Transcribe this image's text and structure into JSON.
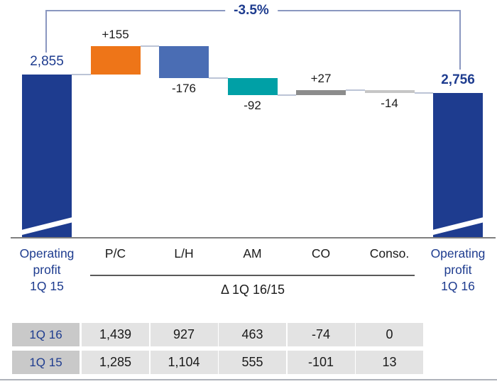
{
  "colors": {
    "dark_blue": "#1e3c8f",
    "orange": "#ee7518",
    "mid_blue": "#4a6db4",
    "teal": "#00a0a6",
    "gray": "#8c8c8c",
    "light_gray": "#c6c6c6",
    "connector": "#bcc4d6",
    "bracket": "#8a97c0",
    "axis": "#7f7f7f",
    "table_header_bg": "#c9c9c9",
    "table_cell_bg": "#e3e3e3",
    "text_black": "#1a1a1a",
    "text_blue": "#1e3c8f"
  },
  "chart_data": {
    "type": "waterfall",
    "change_label": "-3.5%",
    "start": {
      "label": "Operating\nprofit\n1Q 15",
      "value": 2855,
      "display": "2,855"
    },
    "end": {
      "label": "Operating\nprofit\n1Q 16",
      "value": 2756,
      "display": "2,756"
    },
    "deltas": [
      {
        "category": "P/C",
        "value": 155,
        "display": "+155",
        "color": "#ee7518"
      },
      {
        "category": "L/H",
        "value": -176,
        "display": "-176",
        "color": "#4a6db4"
      },
      {
        "category": "AM",
        "value": -92,
        "display": "-92",
        "color": "#00a0a6"
      },
      {
        "category": "CO",
        "value": 27,
        "display": "+27",
        "color": "#8c8c8c"
      },
      {
        "category": "Conso.",
        "value": -14,
        "display": "-14",
        "color": "#c6c6c6"
      }
    ],
    "delta_axis_label": "Δ 1Q 16/15",
    "axis_break_on_endpoints": true,
    "table": {
      "rows": [
        {
          "header": "1Q 16",
          "values": [
            "1,439",
            "927",
            "463",
            "-74",
            "0"
          ]
        },
        {
          "header": "1Q 15",
          "values": [
            "1,285",
            "1,104",
            "555",
            "-101",
            "13"
          ]
        }
      ]
    }
  }
}
